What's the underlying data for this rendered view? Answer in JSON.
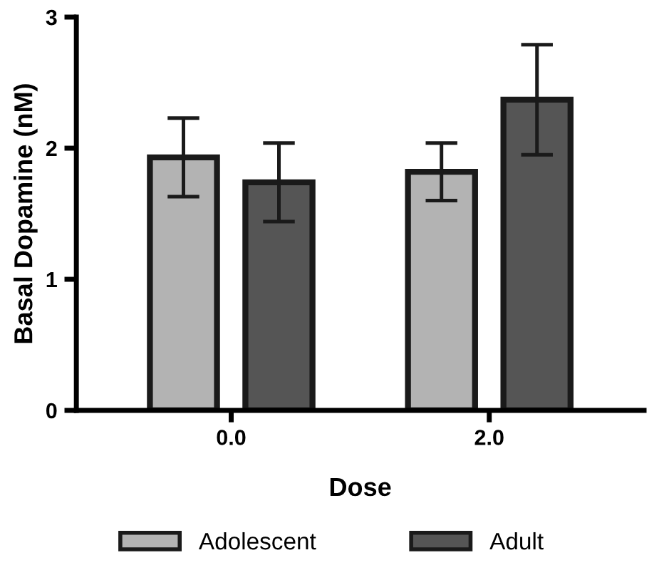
{
  "chart_data": {
    "type": "bar",
    "xlabel": "Dose",
    "ylabel": "Basal Dopamine (nM)",
    "categories": [
      "0.0",
      "2.0"
    ],
    "series": [
      {
        "name": "Adolescent",
        "color": "#b3b3b3",
        "values": [
          1.93,
          1.82
        ],
        "errors": [
          0.3,
          0.22
        ]
      },
      {
        "name": "Adult",
        "color": "#555555",
        "values": [
          1.74,
          2.37
        ],
        "errors": [
          0.3,
          0.42
        ]
      }
    ],
    "ylim": [
      0,
      3
    ],
    "yticks": [
      0,
      1,
      2,
      3
    ],
    "grid": false,
    "legend": "bottom"
  }
}
